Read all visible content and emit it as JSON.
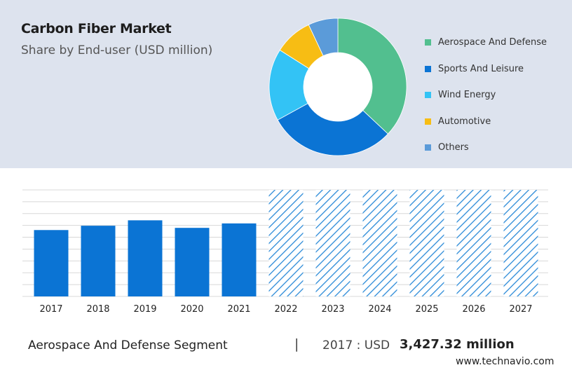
{
  "header": {
    "title": "Carbon Fiber Market",
    "subtitle": "Share by End-user (USD million)"
  },
  "chart_data": [
    {
      "type": "pie",
      "variant": "donut",
      "slices": [
        {
          "label": "Aerospace And Defense",
          "value": 37,
          "color": "#52bf8f"
        },
        {
          "label": "Sports And Leisure",
          "value": 30,
          "color": "#0b74d4"
        },
        {
          "label": "Wind Energy",
          "value": 17,
          "color": "#33c3f5"
        },
        {
          "label": "Automotive",
          "value": 9,
          "color": "#f7bd14"
        },
        {
          "label": "Others",
          "value": 7,
          "color": "#5b9bd9"
        }
      ],
      "legend": "right"
    },
    {
      "type": "bar",
      "categories": [
        "2017",
        "2018",
        "2019",
        "2020",
        "2021",
        "2022",
        "2023",
        "2024",
        "2025",
        "2026",
        "2027"
      ],
      "values": [
        3427.32,
        3650,
        3930,
        3540,
        3770,
        null,
        null,
        null,
        null,
        null,
        null
      ],
      "forecast_from": "2022",
      "ylim": [
        0,
        5500
      ],
      "grid": true,
      "colors": {
        "actual": "#0b74d4",
        "forecast_hatch": "#2a8ad8"
      }
    }
  ],
  "footer": {
    "segment_label": "Aerospace And Defense Segment",
    "separator": "|",
    "year_text": "2017 : USD",
    "value_text": "3,427.32 million",
    "site": "www.technavio.com"
  }
}
